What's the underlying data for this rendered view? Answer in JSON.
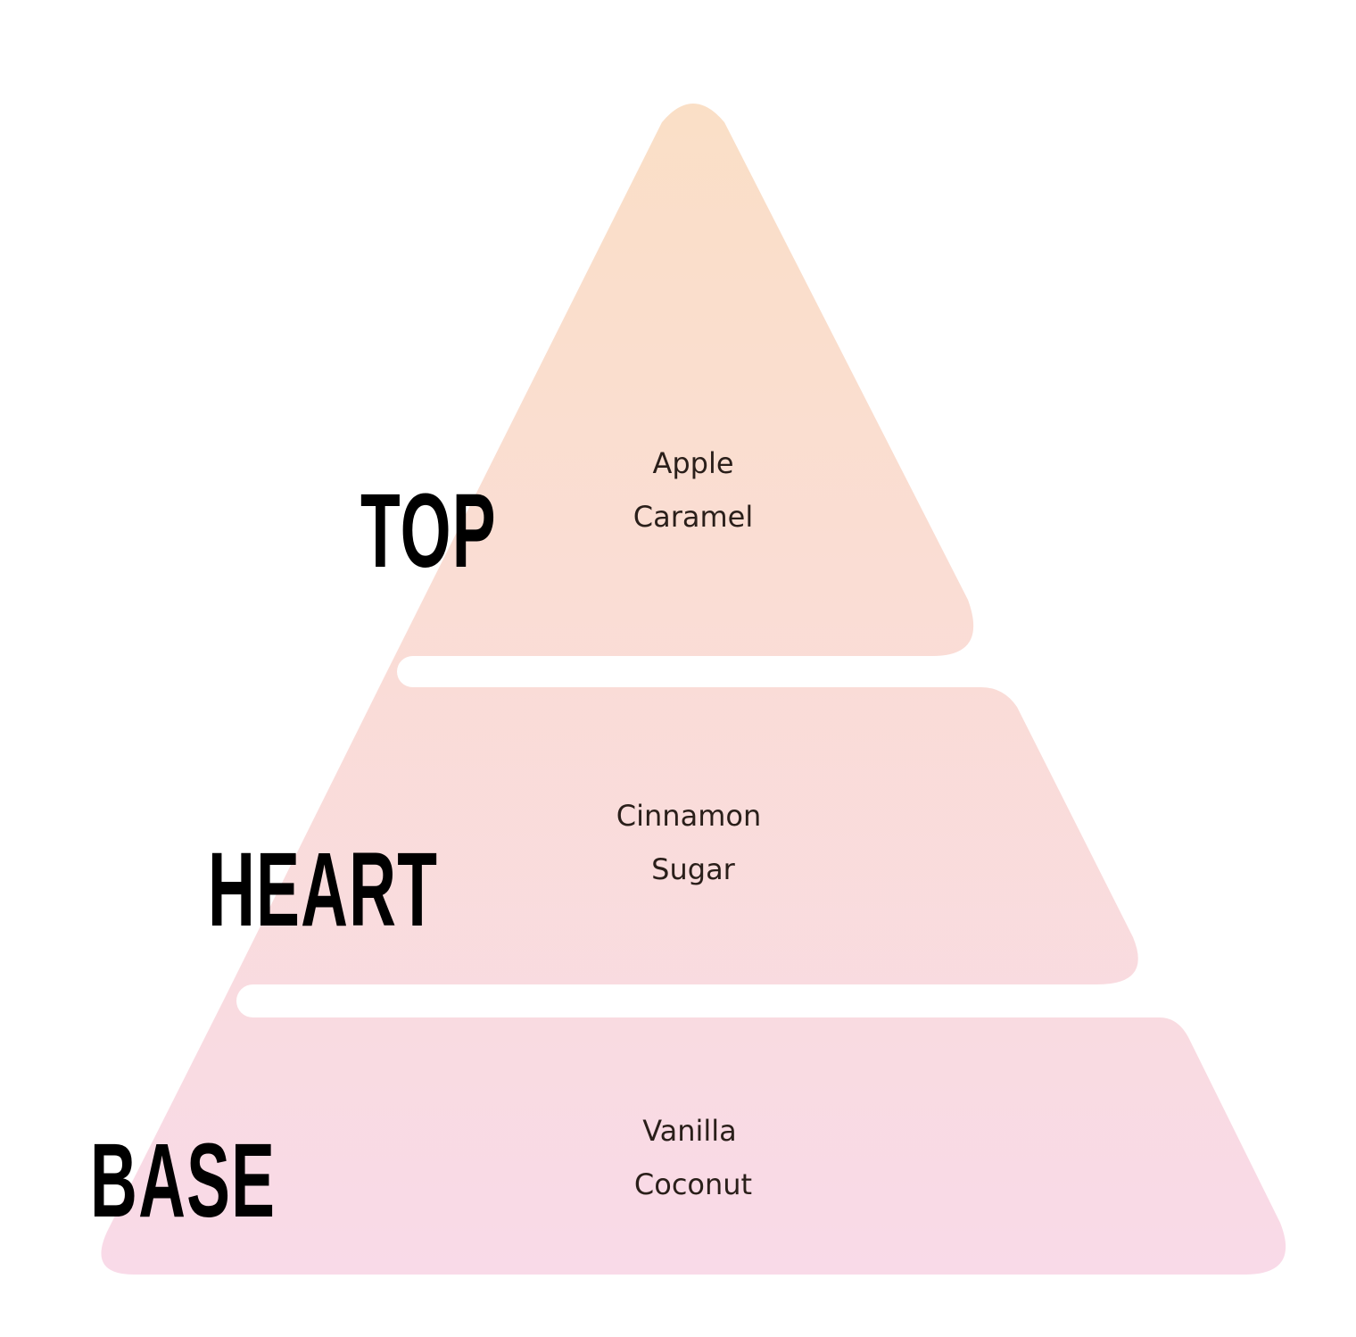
{
  "colors": {
    "top_fill": "#FADFC6",
    "base_fill": "#F9DAE8",
    "label_color": "#000000",
    "note_color": "#2A1F1A"
  },
  "tiers": [
    {
      "label": "TOP",
      "notes": [
        "Apple",
        "Caramel"
      ]
    },
    {
      "label": "HEART",
      "notes": [
        "Cinnamon",
        "Sugar"
      ]
    },
    {
      "label": "BASE",
      "notes": [
        "Vanilla",
        "Coconut"
      ]
    }
  ]
}
